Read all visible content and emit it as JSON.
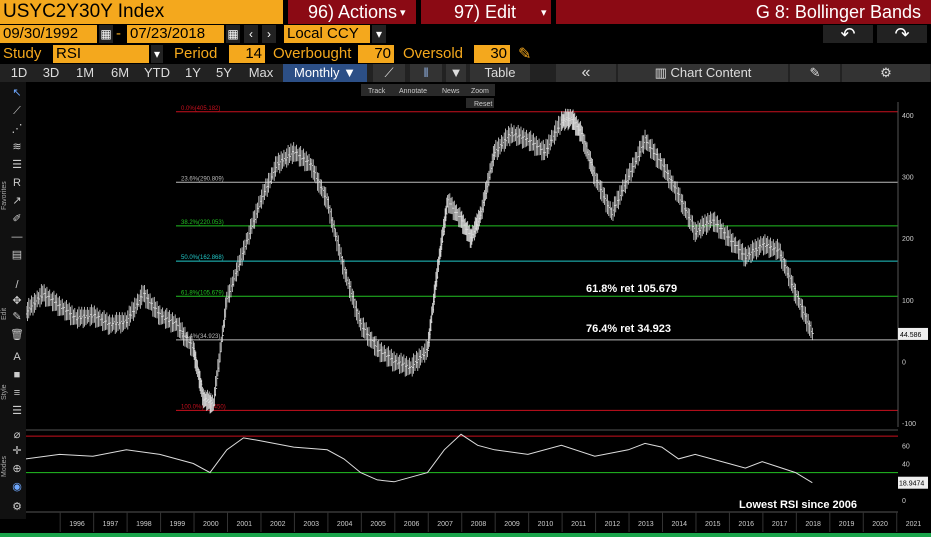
{
  "header": {
    "ticker_title": "USYC2Y30Y Index",
    "actions_label": "96) Actions",
    "edit_label": "97) Edit",
    "function_title": "G 8: Bollinger Bands",
    "caret": "▾"
  },
  "date_row": {
    "start_date": "09/30/1992",
    "separator": "-",
    "end_date": "07/23/2018",
    "currency": "Local CCY",
    "back_icon": "↶",
    "forward_icon": "↷"
  },
  "study_row": {
    "study_label": "Study",
    "study_value": "RSI",
    "period_label": "Period",
    "period_value": "14",
    "overbought_label": "Overbought",
    "overbought_value": "70",
    "oversold_label": "Oversold",
    "oversold_value": "30"
  },
  "toolbar": {
    "ranges": [
      "1D",
      "3D",
      "1M",
      "6M",
      "YTD",
      "1Y",
      "5Y",
      "Max"
    ],
    "frequency": "Monthly ▼",
    "table_label": "Table",
    "collapse_label": "«",
    "chart_content_label": "Chart Content"
  },
  "chart_tools": {
    "track": "Track",
    "annotate": "Annotate",
    "news": "News",
    "zoom": "Zoom",
    "reset": "Reset"
  },
  "side_labels": [
    "Favorites",
    "Edit",
    "Style",
    "Modes"
  ],
  "annotations": {
    "ret_618": "61.8% ret 105.679",
    "ret_764": "76.4% ret 34.923",
    "lowest_rsi": "Lowest RSI since  2006"
  },
  "colors": {
    "orange": "#f4a81d",
    "red_bar": "#8b0a14",
    "toolbar_bg": "#222222",
    "monthly_blue": "#2c4f86",
    "fib_red": "#c8101e",
    "fib_green": "#22c022",
    "fib_cyan": "#22c8c8",
    "fib_white": "#bbbbbb"
  },
  "chart_data": [
    {
      "type": "line",
      "title": "USYC2Y30Y Index",
      "x_range": [
        1995,
        2021
      ],
      "ylim": [
        -100,
        400
      ],
      "y_ticks": [
        400,
        300,
        200,
        100,
        0,
        -100
      ],
      "x_ticks": [
        "1996",
        "1997",
        "1998",
        "1999",
        "2000",
        "2001",
        "2002",
        "2003",
        "2004",
        "2005",
        "2006",
        "2007",
        "2008",
        "2009",
        "2010",
        "2011",
        "2012",
        "2013",
        "2014",
        "2015",
        "2016",
        "2017",
        "2018",
        "2019",
        "2020",
        "2021"
      ],
      "last_value": "44.586",
      "fib_levels": [
        {
          "label": "0.0%(405.182)",
          "value": 405.182,
          "color": "red"
        },
        {
          "label": "23.6%(290.809)",
          "value": 290.809,
          "color": "white"
        },
        {
          "label": "38.2%(220.053)",
          "value": 220.053,
          "color": "green"
        },
        {
          "label": "50.0%(162.868)",
          "value": 162.868,
          "color": "cyan"
        },
        {
          "label": "61.8%(105.679)",
          "value": 105.679,
          "color": "green"
        },
        {
          "label": "76.4%(34.923)",
          "value": 34.923,
          "color": "white"
        },
        {
          "label": "100.0%(-79.450)",
          "value": -79.45,
          "color": "red"
        }
      ],
      "series": [
        {
          "x": [
            1995,
            1995.5,
            1996,
            1996.5,
            1997,
            1997.5,
            1998,
            1998.5,
            1999,
            1999.5,
            2000,
            2000.3,
            2000.6,
            2001,
            2001.5,
            2002,
            2002.5,
            2003,
            2003.5,
            2004,
            2004.5,
            2005,
            2005.5,
            2006,
            2006.5,
            2007,
            2007.3,
            2007.6,
            2008,
            2008.3,
            2008.6,
            2009,
            2009.5,
            2010,
            2010.5,
            2011,
            2011.3,
            2011.6,
            2012,
            2012.5,
            2013,
            2013.5,
            2014,
            2014.5,
            2015,
            2015.5,
            2016,
            2016.5,
            2017,
            2017.5,
            2018,
            2018.5
          ],
          "values": [
            80,
            110,
            90,
            70,
            75,
            60,
            65,
            110,
            75,
            60,
            20,
            -60,
            -70,
            100,
            180,
            260,
            320,
            340,
            320,
            260,
            150,
            60,
            20,
            0,
            -10,
            20,
            150,
            260,
            230,
            200,
            240,
            340,
            370,
            360,
            340,
            390,
            395,
            370,
            300,
            240,
            300,
            360,
            320,
            270,
            210,
            230,
            200,
            170,
            190,
            180,
            110,
            44.586
          ]
        }
      ]
    },
    {
      "type": "line",
      "title": "RSI",
      "ylim": [
        0,
        70
      ],
      "y_ticks": [
        60,
        40,
        20,
        0
      ],
      "overbought": 70,
      "oversold": 30,
      "last_value": "18.9474",
      "series": [
        {
          "x": [
            1995,
            1996,
            1997,
            1998,
            1999,
            2000,
            2000.5,
            2001,
            2001.5,
            2002,
            2003,
            2004,
            2004.5,
            2005,
            2005.5,
            2006,
            2006.5,
            2007,
            2007.5,
            2008,
            2008.5,
            2009,
            2010,
            2011,
            2012,
            2013,
            2013.5,
            2014,
            2014.5,
            2015,
            2016,
            2016.5,
            2017,
            2017.5,
            2018,
            2018.5
          ],
          "values": [
            45,
            50,
            48,
            55,
            50,
            40,
            30,
            55,
            68,
            65,
            58,
            55,
            45,
            30,
            22,
            20,
            25,
            30,
            55,
            72,
            60,
            55,
            50,
            60,
            48,
            55,
            62,
            58,
            45,
            50,
            40,
            35,
            42,
            36,
            30,
            18.9474
          ]
        }
      ]
    }
  ]
}
